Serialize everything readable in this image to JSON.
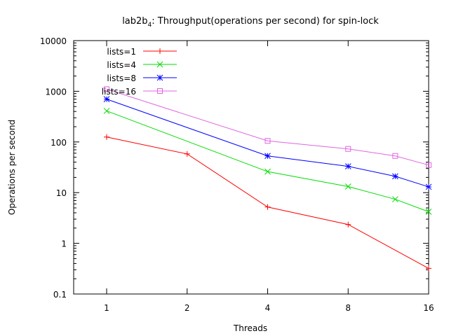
{
  "chart_data": {
    "type": "line",
    "title": "lab2b",
    "title_subscript": "4",
    "title_rest": ": Throughput(operations per second) for spin-lock",
    "xlabel": "Threads",
    "ylabel": "Operations per second",
    "x_scale": "log2",
    "y_scale": "log10",
    "xlim": [
      1,
      16
    ],
    "ylim": [
      0.1,
      10000
    ],
    "x_ticks": [
      1,
      2,
      4,
      8,
      16
    ],
    "x_tick_labels": [
      "1",
      "2",
      "4",
      "8",
      "16"
    ],
    "y_ticks": [
      0.1,
      1,
      10,
      100,
      1000,
      10000
    ],
    "y_tick_labels": [
      "0.1",
      "1",
      "10",
      "100",
      "1000",
      "10000"
    ],
    "grid": false,
    "legend_position": "top-left",
    "series": [
      {
        "name": "lists=1",
        "color": "#ff0000",
        "marker": "plus",
        "x": [
          1,
          2,
          4,
          8,
          16
        ],
        "y": [
          125,
          58,
          5.2,
          2.35,
          0.32
        ]
      },
      {
        "name": "lists=4",
        "color": "#00dd00",
        "marker": "cross",
        "x": [
          1,
          4,
          8,
          12,
          16
        ],
        "y": [
          410,
          26,
          13.2,
          7.4,
          4.2
        ]
      },
      {
        "name": "lists=8",
        "color": "#0000ff",
        "marker": "star",
        "x": [
          1,
          4,
          8,
          12,
          16
        ],
        "y": [
          700,
          53,
          33,
          21,
          13
        ]
      },
      {
        "name": "lists=16",
        "color": "#e066e0",
        "marker": "square",
        "x": [
          1,
          4,
          8,
          12,
          16
        ],
        "y": [
          1100,
          105,
          73,
          53,
          35
        ]
      }
    ]
  }
}
